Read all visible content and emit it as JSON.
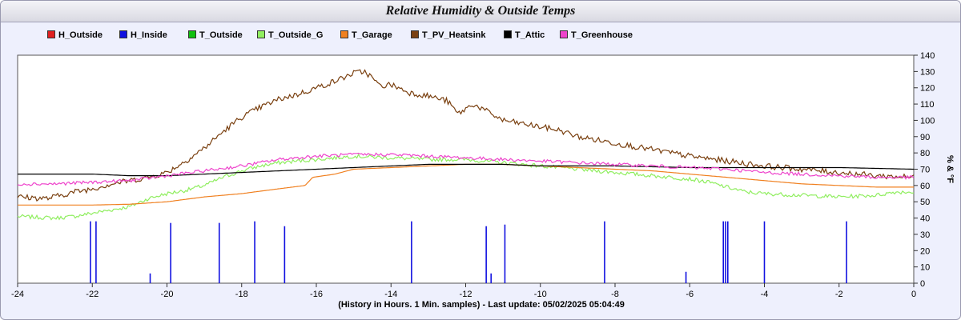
{
  "title": "Relative Humidity & Outside Temps",
  "footer": "(History in Hours. 1 Min. samples) - Last update: 05/02/2025 05:04:49",
  "chart_data": {
    "type": "line",
    "title": "Relative Humidity & Outside Temps",
    "xlabel": "(History in Hours. 1 Min. samples)",
    "ylabel": "% & °F",
    "xlim": [
      -24,
      0
    ],
    "ylim": [
      0,
      140
    ],
    "x_ticks": [
      -24,
      -22,
      -20,
      -18,
      -16,
      -14,
      -12,
      -10,
      -8,
      -6,
      -4,
      -2,
      0
    ],
    "y_ticks": [
      0,
      10,
      20,
      30,
      40,
      50,
      60,
      70,
      80,
      90,
      100,
      110,
      120,
      130,
      140
    ],
    "y_axis_position": "right",
    "grid": false,
    "legend_position": "top",
    "series": [
      {
        "name": "H_Outside",
        "color": "#e02020",
        "points": []
      },
      {
        "name": "H_Inside",
        "color": "#1010e0",
        "style": "spikes",
        "spikes": [
          [
            -22.05,
            38
          ],
          [
            -21.9,
            38
          ],
          [
            -20.45,
            6
          ],
          [
            -19.9,
            37
          ],
          [
            -18.6,
            37
          ],
          [
            -17.65,
            38
          ],
          [
            -16.85,
            35
          ],
          [
            -13.45,
            38
          ],
          [
            -11.45,
            35
          ],
          [
            -11.32,
            6
          ],
          [
            -10.95,
            36
          ],
          [
            -8.28,
            38
          ],
          [
            -6.1,
            7
          ],
          [
            -5.1,
            38
          ],
          [
            -5.04,
            38
          ],
          [
            -4.98,
            38
          ],
          [
            -4.0,
            38
          ],
          [
            -1.8,
            38
          ]
        ]
      },
      {
        "name": "T_Outside",
        "color": "#10c010",
        "points": []
      },
      {
        "name": "T_Outside_G",
        "color": "#90ee60",
        "noise": 1.2,
        "points": [
          [
            -24,
            41
          ],
          [
            -23,
            40
          ],
          [
            -22.5,
            41
          ],
          [
            -22,
            43
          ],
          [
            -21.5,
            45
          ],
          [
            -21,
            47
          ],
          [
            -20.5,
            52
          ],
          [
            -20,
            55
          ],
          [
            -19.5,
            57
          ],
          [
            -19,
            60
          ],
          [
            -18.5,
            65
          ],
          [
            -18,
            69
          ],
          [
            -17.5,
            72
          ],
          [
            -17,
            74
          ],
          [
            -16.5,
            75
          ],
          [
            -16,
            76
          ],
          [
            -15,
            78
          ],
          [
            -14,
            77
          ],
          [
            -13,
            76
          ],
          [
            -12,
            76
          ],
          [
            -11,
            74
          ],
          [
            -10,
            72
          ],
          [
            -9,
            70
          ],
          [
            -8,
            68
          ],
          [
            -7,
            66
          ],
          [
            -6,
            64
          ],
          [
            -5.5,
            62
          ],
          [
            -5,
            59
          ],
          [
            -4.5,
            56
          ],
          [
            -4,
            55
          ],
          [
            -3,
            54
          ],
          [
            -2,
            53
          ],
          [
            -1,
            54
          ],
          [
            -0.5,
            56
          ],
          [
            0,
            56
          ]
        ]
      },
      {
        "name": "T_Garage",
        "color": "#f08020",
        "points": [
          [
            -24,
            48
          ],
          [
            -22,
            48
          ],
          [
            -21,
            48.5
          ],
          [
            -20,
            50
          ],
          [
            -19,
            53
          ],
          [
            -18,
            55
          ],
          [
            -17,
            58
          ],
          [
            -16.3,
            60
          ],
          [
            -16.1,
            65
          ],
          [
            -15.5,
            67
          ],
          [
            -15,
            70
          ],
          [
            -14,
            71
          ],
          [
            -13,
            72
          ],
          [
            -12,
            73
          ],
          [
            -11,
            73
          ],
          [
            -10,
            72
          ],
          [
            -9,
            71
          ],
          [
            -8,
            70
          ],
          [
            -7,
            69
          ],
          [
            -6,
            67
          ],
          [
            -5,
            65
          ],
          [
            -4,
            63
          ],
          [
            -3,
            61
          ],
          [
            -2,
            60
          ],
          [
            -1,
            59
          ],
          [
            0,
            59
          ]
        ]
      },
      {
        "name": "T_PV_Heatsink",
        "color": "#7a4010",
        "noise": 1.8,
        "points": [
          [
            -24,
            53
          ],
          [
            -23.2,
            52
          ],
          [
            -22.5,
            56
          ],
          [
            -22,
            58
          ],
          [
            -21.5,
            61
          ],
          [
            -21,
            63
          ],
          [
            -20.5,
            65
          ],
          [
            -20,
            68
          ],
          [
            -19.5,
            75
          ],
          [
            -19,
            83
          ],
          [
            -18.5,
            93
          ],
          [
            -18,
            102
          ],
          [
            -17.5,
            108
          ],
          [
            -17,
            113
          ],
          [
            -16.5,
            116
          ],
          [
            -16,
            120
          ],
          [
            -15.5,
            124
          ],
          [
            -15,
            129
          ],
          [
            -14.7,
            130
          ],
          [
            -14.5,
            126
          ],
          [
            -14.3,
            121
          ],
          [
            -14,
            122
          ],
          [
            -13.5,
            117
          ],
          [
            -13,
            115
          ],
          [
            -12.5,
            112
          ],
          [
            -12.2,
            104
          ],
          [
            -11.8,
            110
          ],
          [
            -11,
            100
          ],
          [
            -10,
            96
          ],
          [
            -9.5,
            94
          ],
          [
            -9,
            90
          ],
          [
            -8,
            86
          ],
          [
            -7,
            82
          ],
          [
            -6,
            78
          ],
          [
            -5,
            75
          ],
          [
            -4,
            72
          ],
          [
            -3,
            70
          ],
          [
            -2,
            68
          ],
          [
            -1,
            66
          ],
          [
            0,
            65
          ]
        ]
      },
      {
        "name": "T_Attic",
        "color": "#000000",
        "points": [
          [
            -24,
            67
          ],
          [
            -22,
            67
          ],
          [
            -21,
            66
          ],
          [
            -20,
            66
          ],
          [
            -19,
            67
          ],
          [
            -18,
            68
          ],
          [
            -17,
            69
          ],
          [
            -16,
            70
          ],
          [
            -15,
            71
          ],
          [
            -14,
            72
          ],
          [
            -13,
            73
          ],
          [
            -12,
            73
          ],
          [
            -11,
            73
          ],
          [
            -10,
            72
          ],
          [
            -8,
            72
          ],
          [
            -6,
            71
          ],
          [
            -4,
            71
          ],
          [
            -2,
            71
          ],
          [
            0,
            70
          ]
        ]
      },
      {
        "name": "T_Greenhouse",
        "color": "#ee44cc",
        "noise": 1.0,
        "points": [
          [
            -24,
            61
          ],
          [
            -23,
            61
          ],
          [
            -22,
            62
          ],
          [
            -21,
            63
          ],
          [
            -20,
            66
          ],
          [
            -19,
            69
          ],
          [
            -18,
            72
          ],
          [
            -17,
            76
          ],
          [
            -16,
            78
          ],
          [
            -15,
            79
          ],
          [
            -14,
            79
          ],
          [
            -13,
            78
          ],
          [
            -12,
            77
          ],
          [
            -11,
            76
          ],
          [
            -10,
            75
          ],
          [
            -9,
            74
          ],
          [
            -8,
            73
          ],
          [
            -7,
            72
          ],
          [
            -6,
            71
          ],
          [
            -5,
            70
          ],
          [
            -4,
            68
          ],
          [
            -3,
            67
          ],
          [
            -2,
            66
          ],
          [
            -1,
            65
          ],
          [
            0,
            65
          ]
        ]
      }
    ]
  }
}
